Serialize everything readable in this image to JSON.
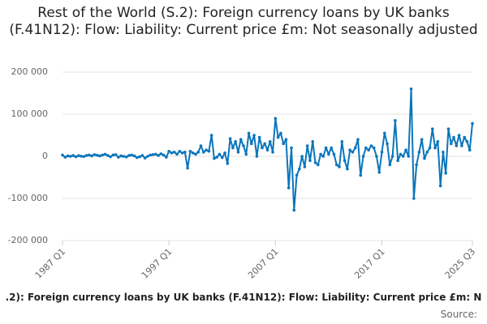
{
  "chart_data": {
    "type": "line",
    "title": "Rest of the World (S.2): Foreign currency loans by UK banks (F.41N12): Flow: Liability: Current price £m: Not seasonally adjusted",
    "footer": ".2): Foreign currency loans by UK banks (F.41N12): Flow: Liability: Current price £m: N",
    "source": "Source:",
    "categories": [
      "1987 Q1",
      null,
      null,
      null,
      null,
      null,
      null,
      null,
      null,
      null,
      null,
      null,
      null,
      null,
      null,
      null,
      null,
      null,
      null,
      null,
      null,
      null,
      null,
      null,
      null,
      null,
      null,
      null,
      null,
      null,
      null,
      null,
      null,
      null,
      null,
      null,
      null,
      null,
      null,
      null,
      "1997 Q1",
      null,
      null,
      null,
      null,
      null,
      null,
      null,
      null,
      null,
      null,
      null,
      null,
      null,
      null,
      null,
      null,
      null,
      null,
      null,
      null,
      null,
      null,
      null,
      null,
      null,
      null,
      null,
      null,
      null,
      null,
      null,
      null,
      null,
      null,
      null,
      null,
      null,
      null,
      null,
      "2007 Q1",
      null,
      null,
      null,
      null,
      null,
      null,
      null,
      null,
      null,
      null,
      null,
      null,
      null,
      null,
      null,
      null,
      null,
      null,
      null,
      null,
      null,
      null,
      null,
      null,
      null,
      null,
      null,
      null,
      null,
      null,
      null,
      null,
      null,
      null,
      null,
      null,
      null,
      null,
      null,
      "2017 Q1",
      null,
      null,
      null,
      null,
      null,
      null,
      null,
      null,
      null,
      null,
      null,
      null,
      null,
      null,
      null,
      null,
      null,
      null,
      null,
      null,
      null,
      null,
      null,
      null,
      null,
      null,
      null,
      null,
      null,
      null,
      null,
      null,
      null,
      "2025 Q3"
    ],
    "values": [
      3000,
      -2000,
      1000,
      0,
      2000,
      -1000,
      1500,
      500,
      -500,
      2000,
      3000,
      1000,
      4000,
      2500,
      1000,
      3000,
      5000,
      2000,
      -1000,
      3000,
      4000,
      -2000,
      1000,
      0,
      -1500,
      2000,
      3000,
      1000,
      -3000,
      -1000,
      2000,
      -4000,
      0,
      3000,
      4000,
      5000,
      2000,
      6000,
      3000,
      -2000,
      12000,
      8000,
      10000,
      5000,
      12000,
      8000,
      10000,
      -28000,
      12000,
      8000,
      5000,
      10000,
      25000,
      10000,
      15000,
      12000,
      50000,
      -5000,
      -2000,
      5000,
      -3000,
      8000,
      -17000,
      42000,
      20000,
      35000,
      10000,
      40000,
      25000,
      5000,
      55000,
      30000,
      50000,
      0,
      45000,
      20000,
      30000,
      15000,
      35000,
      10000,
      90000,
      45000,
      55000,
      30000,
      40000,
      -75000,
      20000,
      -128000,
      -45000,
      -30000,
      0,
      -25000,
      25000,
      -10000,
      35000,
      -15000,
      -20000,
      5000,
      0,
      20000,
      5000,
      20000,
      5000,
      -20000,
      -25000,
      35000,
      -10000,
      -30000,
      15000,
      10000,
      20000,
      40000,
      -45000,
      0,
      20000,
      15000,
      25000,
      20000,
      0,
      -38000,
      10000,
      55000,
      30000,
      -20000,
      0,
      85000,
      -10000,
      5000,
      0,
      15000,
      0,
      160000,
      -100000,
      -20000,
      10000,
      40000,
      -5000,
      10000,
      20000,
      65000,
      20000,
      35000,
      -70000,
      10000,
      -40000,
      65000,
      30000,
      45000,
      25000,
      50000,
      25000,
      45000,
      35000,
      15000,
      78000
    ],
    "color": "#0a75bb",
    "ylim": [
      -200000,
      200000
    ],
    "yticks": [
      {
        "value": -200000,
        "label": "-200 000"
      },
      {
        "value": -100000,
        "label": "-100 000"
      },
      0,
      {
        "value": 100000,
        "label": "100 000"
      },
      {
        "value": 200000,
        "label": "200 000"
      }
    ],
    "grid": true
  }
}
